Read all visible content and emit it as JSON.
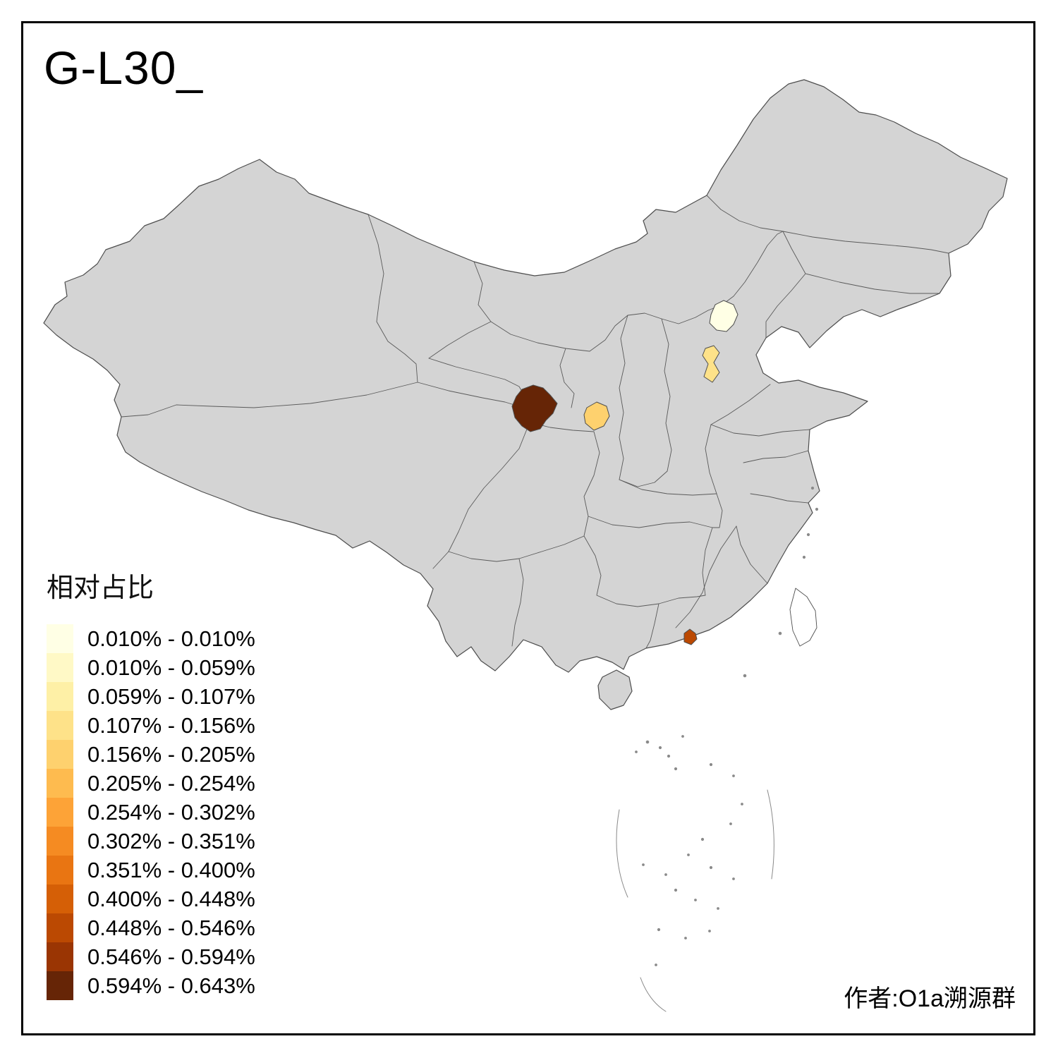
{
  "title": "G-L30_",
  "attribution": "作者:O1a溯源群",
  "legend": {
    "title": "相对占比",
    "items": [
      {
        "label": "0.010% - 0.010%",
        "color": "#FFFFE5"
      },
      {
        "label": "0.010% - 0.059%",
        "color": "#FFF9C6"
      },
      {
        "label": "0.059% - 0.107%",
        "color": "#FEF0A6"
      },
      {
        "label": "0.107% - 0.156%",
        "color": "#FEE289"
      },
      {
        "label": "0.156% - 0.205%",
        "color": "#FED16E"
      },
      {
        "label": "0.205% - 0.254%",
        "color": "#FEBB4F"
      },
      {
        "label": "0.254% - 0.302%",
        "color": "#FDA337"
      },
      {
        "label": "0.302% - 0.351%",
        "color": "#F58B22"
      },
      {
        "label": "0.351% - 0.400%",
        "color": "#E97512"
      },
      {
        "label": "0.400% - 0.448%",
        "color": "#D55F06"
      },
      {
        "label": "0.448% - 0.546%",
        "color": "#BB4902"
      },
      {
        "label": "0.546% - 0.594%",
        "color": "#9A3503"
      },
      {
        "label": "0.594% - 0.643%",
        "color": "#662506"
      }
    ]
  },
  "map": {
    "base_fill": "#d4d4d4",
    "border_color": "#4d4d4d",
    "island_fill": "#ffffff",
    "islet_color": "#8a8a8a",
    "regions": [
      {
        "name": "beijing-area",
        "color": "#FFFFE5"
      },
      {
        "name": "tianjin-area",
        "color": "#FEE289"
      },
      {
        "name": "central-shaanxi-area",
        "color": "#FED16E"
      },
      {
        "name": "gansu-qinghai-area",
        "color": "#662506"
      },
      {
        "name": "guangdong-coast-area",
        "color": "#BB4902"
      }
    ]
  }
}
